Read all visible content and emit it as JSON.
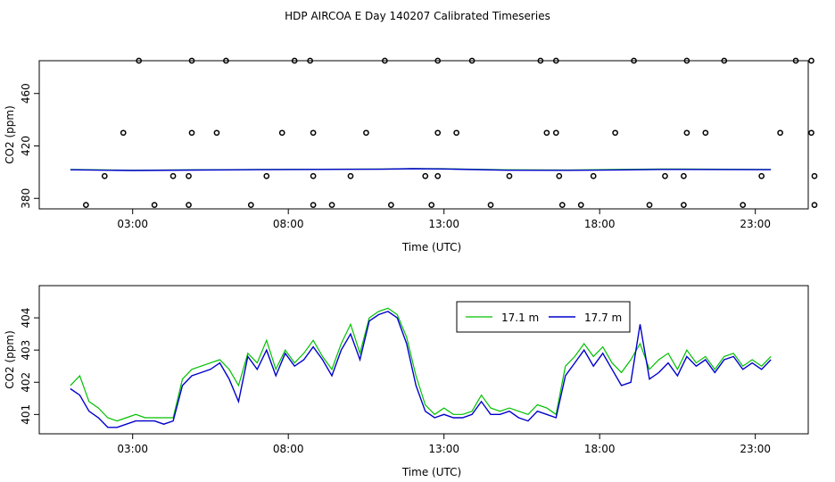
{
  "chart_data": [
    {
      "type": "scatter",
      "title": "HDP AIRCOA E  Day 140207  Calibrated Timeseries",
      "xlabel": "Time (UTC)",
      "ylabel": "CO2 (ppm)",
      "xlim": [
        0.0,
        24.7
      ],
      "ylim": [
        372,
        485
      ],
      "x_tick_labels": [
        "03:00",
        "08:00",
        "13:00",
        "18:00",
        "23:00"
      ],
      "x_ticks": [
        3,
        8,
        13,
        18,
        23
      ],
      "y_ticks": [
        380,
        420,
        460
      ],
      "series": [
        {
          "color": "#00c000",
          "line": [
            [
              1.0,
              402.0
            ],
            [
              3,
              401.5
            ],
            [
              5,
              401.8
            ],
            [
              7,
              402.0
            ],
            [
              9,
              402.2
            ],
            [
              11,
              402.4
            ],
            [
              12,
              402.8
            ],
            [
              13,
              402.6
            ],
            [
              15,
              401.8
            ],
            [
              17,
              401.6
            ],
            [
              18.5,
              402.0
            ],
            [
              20,
              402.4
            ],
            [
              22,
              402.2
            ],
            [
              23.5,
              402.0
            ]
          ]
        },
        {
          "color": "#0000cc",
          "line": [
            [
              1.0,
              401.8
            ],
            [
              3,
              401.3
            ],
            [
              5,
              401.6
            ],
            [
              7,
              401.9
            ],
            [
              9,
              402.1
            ],
            [
              11,
              402.2
            ],
            [
              12,
              402.6
            ],
            [
              13,
              402.4
            ],
            [
              15,
              401.5
            ],
            [
              17,
              401.4
            ],
            [
              18.5,
              401.7
            ],
            [
              20,
              402.1
            ],
            [
              22,
              402.0
            ],
            [
              23.5,
              401.9
            ]
          ]
        },
        {
          "marker": "circle",
          "points": [
            [
              1.5,
              375
            ],
            [
              2.1,
              397
            ],
            [
              2.7,
              430
            ],
            [
              3.2,
              485
            ],
            [
              3.7,
              375
            ],
            [
              4.3,
              397
            ],
            [
              4.8,
              397
            ],
            [
              4.8,
              375
            ],
            [
              4.9,
              430
            ],
            [
              4.9,
              485
            ],
            [
              5.7,
              430
            ],
            [
              6.0,
              485
            ],
            [
              6.8,
              375
            ],
            [
              7.3,
              397
            ],
            [
              7.8,
              430
            ],
            [
              8.2,
              485
            ],
            [
              8.7,
              485
            ],
            [
              8.8,
              430
            ],
            [
              8.8,
              397
            ],
            [
              8.8,
              375
            ],
            [
              9.4,
              375
            ],
            [
              10.0,
              397
            ],
            [
              10.5,
              430
            ],
            [
              11.1,
              485
            ],
            [
              11.3,
              375
            ],
            [
              12.4,
              397
            ],
            [
              12.6,
              375
            ],
            [
              12.8,
              430
            ],
            [
              12.8,
              485
            ],
            [
              12.8,
              397
            ],
            [
              13.4,
              430
            ],
            [
              13.9,
              485
            ],
            [
              14.5,
              375
            ],
            [
              15.1,
              397
            ],
            [
              16.1,
              485
            ],
            [
              16.3,
              430
            ],
            [
              16.6,
              485
            ],
            [
              16.6,
              430
            ],
            [
              16.7,
              397
            ],
            [
              16.8,
              375
            ],
            [
              17.4,
              375
            ],
            [
              17.8,
              397
            ],
            [
              18.5,
              430
            ],
            [
              19.1,
              485
            ],
            [
              19.6,
              375
            ],
            [
              20.1,
              397
            ],
            [
              20.7,
              375
            ],
            [
              20.7,
              397
            ],
            [
              20.8,
              430
            ],
            [
              20.8,
              485
            ],
            [
              21.4,
              430
            ],
            [
              22.0,
              485
            ],
            [
              22.6,
              375
            ],
            [
              23.2,
              397
            ],
            [
              23.8,
              430
            ],
            [
              24.3,
              485
            ],
            [
              24.8,
              485
            ],
            [
              24.8,
              430
            ],
            [
              24.9,
              397
            ],
            [
              24.9,
              375
            ]
          ]
        }
      ]
    },
    {
      "type": "line",
      "xlabel": "Time (UTC)",
      "ylabel": "CO2 (ppm)",
      "xlim": [
        0.0,
        24.7
      ],
      "ylim": [
        400.4,
        405.0
      ],
      "x_tick_labels": [
        "03:00",
        "08:00",
        "13:00",
        "18:00",
        "23:00"
      ],
      "x_ticks": [
        3,
        8,
        13,
        18,
        23
      ],
      "y_ticks": [
        401,
        402,
        403,
        404
      ],
      "legend": "top-center",
      "series": [
        {
          "name": "17.1 m",
          "color": "#00c000",
          "x": [
            1.0,
            1.3,
            1.6,
            1.9,
            2.2,
            2.5,
            2.8,
            3.1,
            3.4,
            3.7,
            4.0,
            4.3,
            4.6,
            4.9,
            5.2,
            5.5,
            5.8,
            6.1,
            6.4,
            6.7,
            7.0,
            7.3,
            7.6,
            7.9,
            8.2,
            8.5,
            8.8,
            9.1,
            9.4,
            9.7,
            10.0,
            10.3,
            10.6,
            10.9,
            11.2,
            11.5,
            11.8,
            12.1,
            12.4,
            12.7,
            13.0,
            13.3,
            13.6,
            13.9,
            14.2,
            14.5,
            14.8,
            15.1,
            15.4,
            15.7,
            16.0,
            16.3,
            16.6,
            16.9,
            17.2,
            17.5,
            17.8,
            18.1,
            18.4,
            18.7,
            19.0,
            19.3,
            19.6,
            19.9,
            20.2,
            20.5,
            20.8,
            21.1,
            21.4,
            21.7,
            22.0,
            22.3,
            22.6,
            22.9,
            23.2,
            23.5
          ],
          "values": [
            401.9,
            402.2,
            401.4,
            401.2,
            400.9,
            400.8,
            400.9,
            401.0,
            400.9,
            400.9,
            400.9,
            400.9,
            402.1,
            402.4,
            402.5,
            402.6,
            402.7,
            402.4,
            401.9,
            402.9,
            402.6,
            403.3,
            402.4,
            403.0,
            402.6,
            402.9,
            403.3,
            402.8,
            402.4,
            403.2,
            403.8,
            402.9,
            404.0,
            404.2,
            404.3,
            404.1,
            403.4,
            402.2,
            401.3,
            401.0,
            401.2,
            401.0,
            401.0,
            401.1,
            401.6,
            401.2,
            401.1,
            401.2,
            401.1,
            401.0,
            401.3,
            401.2,
            401.0,
            402.5,
            402.8,
            403.2,
            402.8,
            403.1,
            402.6,
            402.3,
            402.7,
            403.2,
            402.4,
            402.7,
            402.9,
            402.4,
            403.0,
            402.6,
            402.8,
            402.4,
            402.8,
            402.9,
            402.5,
            402.7,
            402.5,
            402.8
          ]
        },
        {
          "name": "17.7 m",
          "color": "#0000cc",
          "x": [
            1.0,
            1.3,
            1.6,
            1.9,
            2.2,
            2.5,
            2.8,
            3.1,
            3.4,
            3.7,
            4.0,
            4.3,
            4.6,
            4.9,
            5.2,
            5.5,
            5.8,
            6.1,
            6.4,
            6.7,
            7.0,
            7.3,
            7.6,
            7.9,
            8.2,
            8.5,
            8.8,
            9.1,
            9.4,
            9.7,
            10.0,
            10.3,
            10.6,
            10.9,
            11.2,
            11.5,
            11.8,
            12.1,
            12.4,
            12.7,
            13.0,
            13.3,
            13.6,
            13.9,
            14.2,
            14.5,
            14.8,
            15.1,
            15.4,
            15.7,
            16.0,
            16.3,
            16.6,
            16.9,
            17.2,
            17.5,
            17.8,
            18.1,
            18.4,
            18.7,
            19.0,
            19.3,
            19.6,
            19.9,
            20.2,
            20.5,
            20.8,
            21.1,
            21.4,
            21.7,
            22.0,
            22.3,
            22.6,
            22.9,
            23.2,
            23.5
          ],
          "values": [
            401.8,
            401.6,
            401.1,
            400.9,
            400.6,
            400.6,
            400.7,
            400.8,
            400.8,
            400.8,
            400.7,
            400.8,
            401.9,
            402.2,
            402.3,
            402.4,
            402.6,
            402.1,
            401.4,
            402.8,
            402.4,
            403.0,
            402.2,
            402.9,
            402.5,
            402.7,
            403.1,
            402.7,
            402.2,
            403.0,
            403.5,
            402.7,
            403.9,
            404.1,
            404.2,
            404.0,
            403.2,
            401.9,
            401.1,
            400.9,
            401.0,
            400.9,
            400.9,
            401.0,
            401.4,
            401.0,
            401.0,
            401.1,
            400.9,
            400.8,
            401.1,
            401.0,
            400.9,
            402.2,
            402.6,
            403.0,
            402.5,
            402.9,
            402.4,
            401.9,
            402.0,
            403.8,
            402.1,
            402.3,
            402.6,
            402.2,
            402.8,
            402.5,
            402.7,
            402.3,
            402.7,
            402.8,
            402.4,
            402.6,
            402.4,
            402.7
          ]
        }
      ]
    }
  ]
}
